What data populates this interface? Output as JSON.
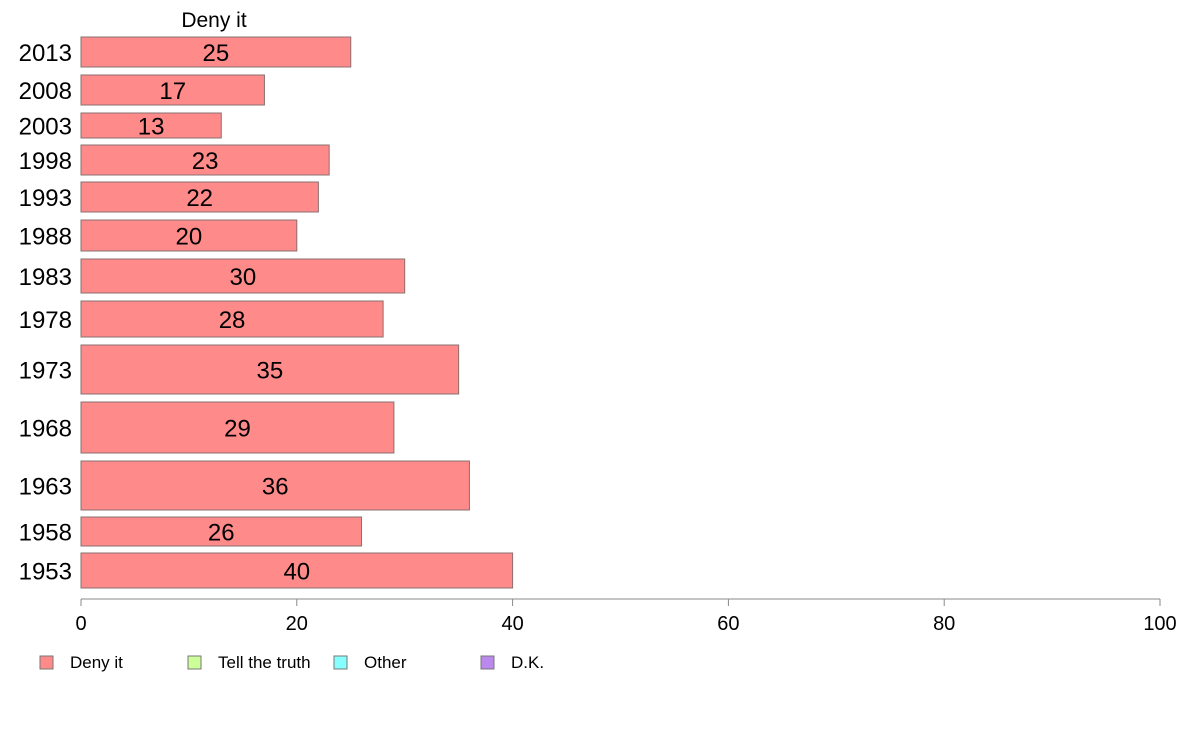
{
  "chart_data": {
    "type": "bar",
    "orientation": "horizontal",
    "panel_title": "Deny it",
    "categories": [
      "2013",
      "2008",
      "2003",
      "1998",
      "1993",
      "1988",
      "1983",
      "1978",
      "1973",
      "1968",
      "1963",
      "1958",
      "1953"
    ],
    "series": [
      {
        "name": "Deny it",
        "values": [
          25,
          17,
          13,
          23,
          22,
          20,
          30,
          28,
          35,
          29,
          36,
          26,
          40
        ]
      }
    ],
    "xlim": [
      0,
      100
    ],
    "xticks": [
      0,
      20,
      40,
      60,
      80,
      100
    ],
    "xlabel": "",
    "ylabel": "",
    "grid": false,
    "legend_position": "bottom",
    "legend": [
      {
        "label": "Deny it",
        "color": "#FF8A8A"
      },
      {
        "label": "Tell the truth",
        "color": "#CCFF99"
      },
      {
        "label": "Other",
        "color": "#88FFFF"
      },
      {
        "label": "D.K.",
        "color": "#BB88EE"
      }
    ]
  }
}
